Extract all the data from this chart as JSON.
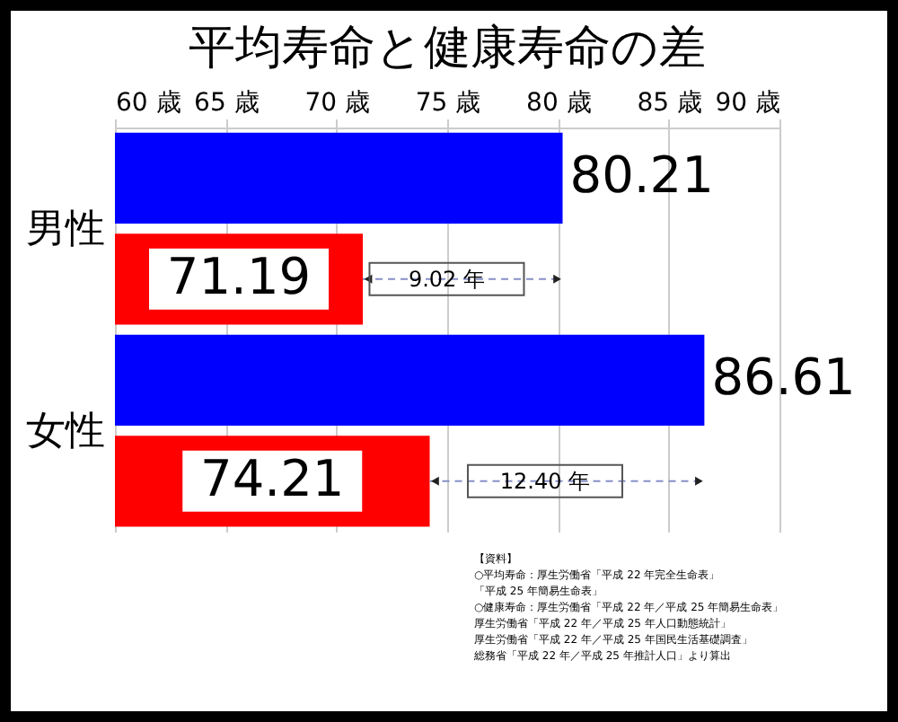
{
  "chart_data": {
    "type": "bar",
    "orientation": "horizontal",
    "title": "平均寿命と健康寿命の差",
    "categories": [
      "男性",
      "女性"
    ],
    "series": [
      {
        "color": "#0000ff",
        "values": [
          80.21,
          86.61
        ]
      },
      {
        "color": "#ff0000",
        "values": [
          71.19,
          74.21
        ]
      }
    ],
    "xlim": [
      60,
      90
    ],
    "xticks": [
      {
        "value": 60,
        "label": "60 歳"
      },
      {
        "value": 65,
        "label": "65 歳"
      },
      {
        "value": 70,
        "label": "70 歳"
      },
      {
        "value": 75,
        "label": "75 歳"
      },
      {
        "value": 80,
        "label": "80 歳"
      },
      {
        "value": 85,
        "label": "85 歳"
      },
      {
        "value": 90,
        "label": "90 歳"
      }
    ],
    "grid": "x",
    "data_labels": true,
    "annotations": [
      "9.02 年",
      "12.40 年",
      "【資料】",
      "○平均寿命：厚生労働省「平成 22 年完全生命表」",
      "「平成 25 年簡易生命表」",
      "○健康寿命：厚生労働省「平成 22 年／平成 25 年簡易生命表」",
      "厚生労働省「平成 22 年／平成 25 年人口動態統計」",
      "厚生労働省「平成 22 年／平成 25 年国民生活基礎調査」",
      "総務省「平成 22 年／平成 25 年推計人口」より算出"
    ]
  }
}
